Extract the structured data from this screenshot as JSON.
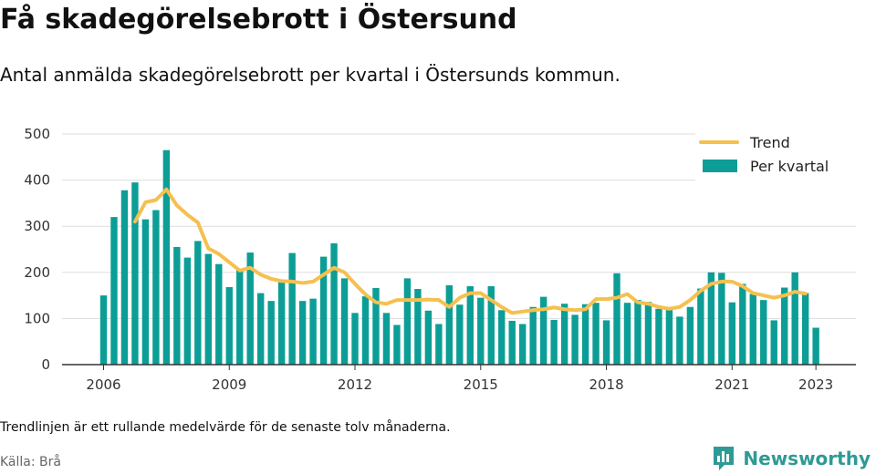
{
  "header": {
    "title": "Få skadegörelsebrott i Östersund",
    "subtitle": "Antal anmälda skadegörelsebrott per kvartal i Östersunds kommun."
  },
  "footer": {
    "note": "Trendlinjen är ett rullande medelvärde för de senaste tolv månaderna.",
    "source": "Källa: Brå",
    "brand": "Newsworthy"
  },
  "colors": {
    "bars": "#0c9e96",
    "trend": "#f5c04f",
    "grid": "#dddddd",
    "brand": "#2f9a95"
  },
  "icons": {
    "brand_logo": "newsworthy-logo-icon"
  },
  "chart_data": {
    "type": "bar",
    "x_start": "2006 Q1",
    "x_ticks": [
      "2006",
      "2009",
      "2012",
      "2015",
      "2018",
      "2021",
      "2023"
    ],
    "ylim": [
      0,
      500
    ],
    "y_ticks": [
      0,
      100,
      200,
      300,
      400,
      500
    ],
    "grid": true,
    "legend_position": "top-right",
    "series": [
      {
        "name": "Per kvartal",
        "type": "bar",
        "values": [
          150,
          320,
          378,
          395,
          315,
          335,
          465,
          255,
          232,
          268,
          240,
          218,
          168,
          205,
          243,
          155,
          138,
          183,
          242,
          138,
          143,
          234,
          263,
          187,
          112,
          148,
          166,
          112,
          86,
          187,
          164,
          117,
          88,
          172,
          130,
          170,
          145,
          170,
          118,
          95,
          88,
          125,
          147,
          97,
          132,
          108,
          131,
          134,
          96,
          198,
          134,
          140,
          136,
          121,
          123,
          104,
          125,
          165,
          200,
          199,
          135,
          175,
          153,
          140,
          96,
          167,
          200,
          155,
          80
        ]
      },
      {
        "name": "Trend",
        "type": "line",
        "start_index": 3,
        "values": [
          310,
          352,
          357,
          380,
          345,
          325,
          308,
          252,
          240,
          222,
          204,
          210,
          195,
          186,
          181,
          180,
          177,
          180,
          195,
          210,
          200,
          175,
          152,
          135,
          132,
          140,
          140,
          140,
          141,
          140,
          125,
          145,
          155,
          155,
          140,
          125,
          112,
          115,
          118,
          120,
          124,
          120,
          118,
          120,
          142,
          142,
          145,
          153,
          135,
          132,
          125,
          121,
          125,
          140,
          160,
          175,
          180,
          180,
          170,
          155,
          150,
          145,
          150,
          158,
          154
        ]
      }
    ]
  }
}
